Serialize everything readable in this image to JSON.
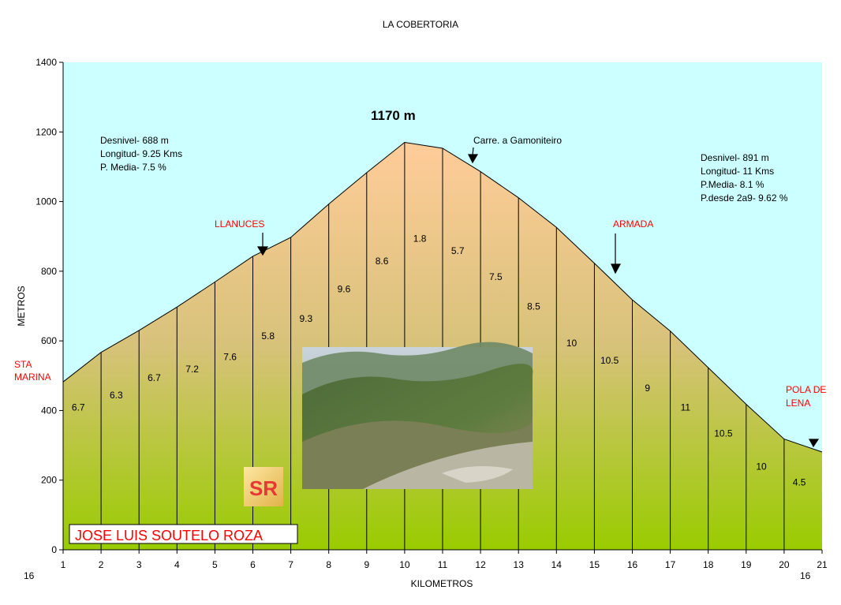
{
  "chart_data": {
    "type": "area",
    "title": "LA COBERTORIA",
    "xlabel": "KILOMETROS",
    "ylabel": "METROS",
    "xlim": [
      1,
      21
    ],
    "ylim": [
      0,
      1400
    ],
    "x_ticks": [
      "1",
      "2",
      "3",
      "4",
      "5",
      "6",
      "7",
      "8",
      "9",
      "10",
      "11",
      "12",
      "13",
      "14",
      "15",
      "16",
      "17",
      "18",
      "19",
      "20",
      "21"
    ],
    "y_ticks": [
      "0",
      "200",
      "400",
      "600",
      "800",
      "1000",
      "1200",
      "1400"
    ],
    "x_corner_labels": [
      "16",
      "16"
    ],
    "profile": {
      "x": [
        1,
        2,
        3,
        4,
        5,
        6,
        7,
        8,
        9,
        10,
        11,
        12,
        13,
        14,
        15,
        16,
        17,
        18,
        19,
        20,
        21
      ],
      "y": [
        482,
        567,
        630,
        697,
        769,
        843,
        897,
        993,
        1083,
        1170,
        1153,
        1086,
        1011,
        926,
        823,
        718,
        628,
        523,
        418,
        318,
        281
      ]
    },
    "segment_gradients": [
      {
        "x": 1.4,
        "y": 400,
        "label": "6.7"
      },
      {
        "x": 2.4,
        "y": 435,
        "label": "6.3"
      },
      {
        "x": 3.4,
        "y": 485,
        "label": "6.7"
      },
      {
        "x": 4.4,
        "y": 510,
        "label": "7.2"
      },
      {
        "x": 5.4,
        "y": 545,
        "label": "7.6"
      },
      {
        "x": 6.4,
        "y": 605,
        "label": "5.8"
      },
      {
        "x": 7.4,
        "y": 655,
        "label": "9.3"
      },
      {
        "x": 8.4,
        "y": 740,
        "label": "9.6"
      },
      {
        "x": 9.4,
        "y": 820,
        "label": "8.6"
      },
      {
        "x": 10.4,
        "y": 885,
        "label": "1.8"
      },
      {
        "x": 11.4,
        "y": 850,
        "label": "5.7"
      },
      {
        "x": 12.4,
        "y": 775,
        "label": "7.5"
      },
      {
        "x": 13.4,
        "y": 690,
        "label": "8.5"
      },
      {
        "x": 14.4,
        "y": 585,
        "label": "10"
      },
      {
        "x": 15.4,
        "y": 535,
        "label": "10.5"
      },
      {
        "x": 16.4,
        "y": 455,
        "label": "9"
      },
      {
        "x": 17.4,
        "y": 400,
        "label": "11"
      },
      {
        "x": 18.4,
        "y": 325,
        "label": "10.5"
      },
      {
        "x": 19.4,
        "y": 230,
        "label": "10"
      },
      {
        "x": 20.4,
        "y": 185,
        "label": "4.5"
      }
    ],
    "annotations": {
      "peak": "1170 m",
      "left_stats": [
        "Desnivel- 688 m",
        "Longitud- 9.25 Kms",
        "P. Media- 7.5 %"
      ],
      "right_stats": [
        "Desnivel- 891 m",
        "Longitud- 11 Kms",
        "P.Media- 8.1 %",
        "P.desde 2a9- 9.62 %"
      ],
      "places": [
        {
          "label": "STA\nMARINA",
          "color": "#ff0000"
        },
        {
          "label": "LLANUCES",
          "color": "#ff0000"
        },
        {
          "label": "ARMADA",
          "color": "#ff0000"
        },
        {
          "label": "POLA DE\nLENA",
          "color": "#ff0000"
        },
        {
          "label": "Carre. a Gamoniteiro",
          "color": "#000000"
        }
      ],
      "arrows_at_km": [
        6.25,
        11.8,
        15.6,
        20.8
      ]
    },
    "author": "JOSE LUIS SOUTELO ROZA",
    "logo_letters": "SR",
    "colors": {
      "sky": "#ccffff",
      "fill_top": "#ffcc99",
      "fill_bottom": "#99cc00",
      "place_label": "#ff0000"
    }
  }
}
